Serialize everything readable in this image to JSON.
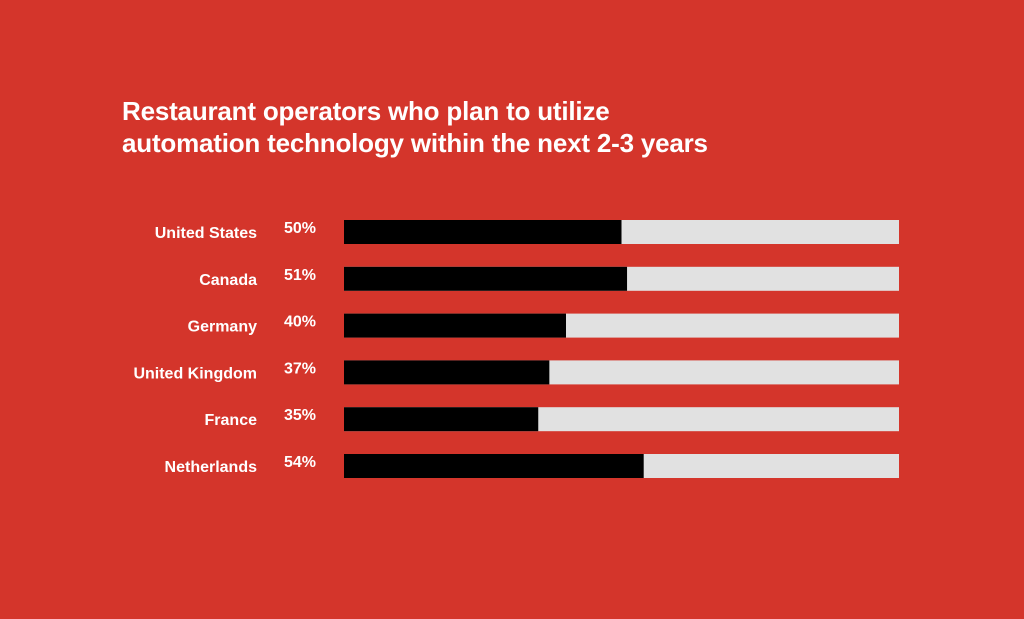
{
  "chart_data": {
    "type": "bar",
    "orientation": "horizontal",
    "title_lines": [
      "Restaurant operators who plan to utilize",
      "automation technology within the next 2-3 years"
    ],
    "categories": [
      "United States",
      "Canada",
      "Germany",
      "United Kingdom",
      "France",
      "Netherlands"
    ],
    "values": [
      50,
      51,
      40,
      37,
      35,
      54
    ],
    "value_labels": [
      "50%",
      "51%",
      "40%",
      "37%",
      "35%",
      "54%"
    ],
    "xlim": [
      0,
      100
    ],
    "grid": false,
    "legend": "none"
  },
  "colors": {
    "background": "#d4352b",
    "bar_fill": "#000000",
    "bar_track": "#e1e1e1",
    "text": "#ffffff"
  }
}
